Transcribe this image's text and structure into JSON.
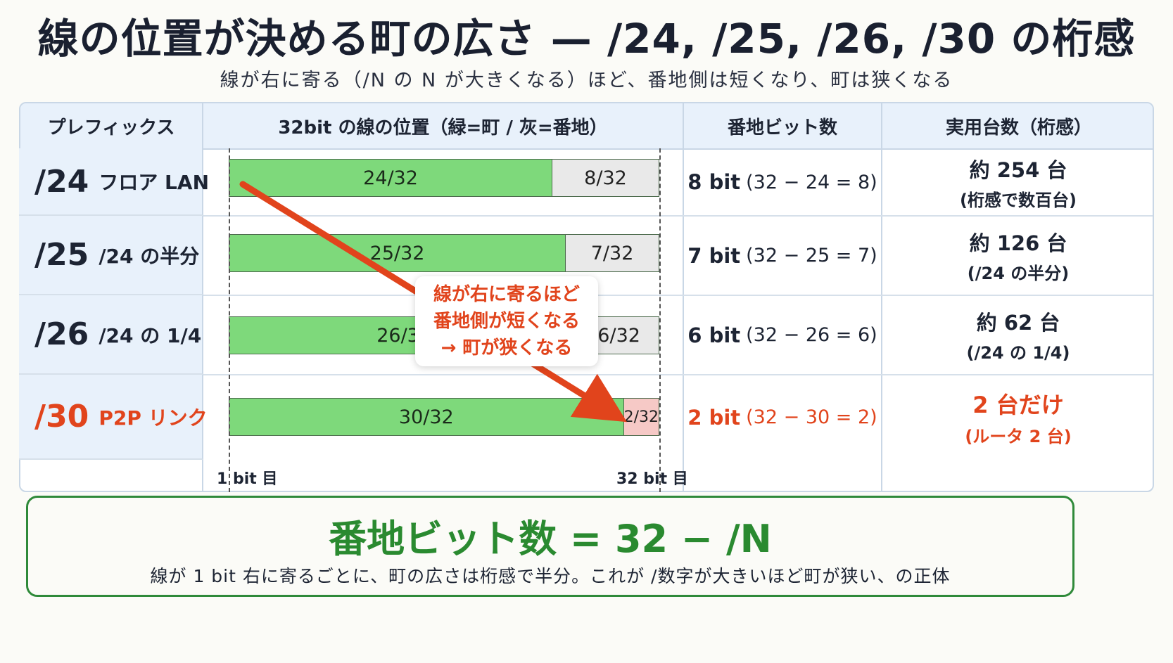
{
  "title": "線の位置が決める町の広さ — /24, /25, /26, /30 の桁感",
  "subtitle": "線が右に寄る（/N の N が大きくなる）ほど、番地側は短くなり、町は狭くなる",
  "table": {
    "headers": [
      "プレフィックス",
      "32bit の線の位置（緑=町 / 灰=番地）",
      "番地ビット数",
      "実用台数（桁感）"
    ],
    "rows": [
      {
        "prefix": "/24",
        "desc": "フロア LAN",
        "net_label": "24/32",
        "host_label": "8/32",
        "net_bits": 24,
        "bits": "8 bit",
        "calc": "(32 − 24 = 8)",
        "devices": "約 254 台",
        "devices_note": "(桁感で数百台)",
        "highlight": false
      },
      {
        "prefix": "/25",
        "desc": "/24 の半分",
        "net_label": "25/32",
        "host_label": "7/32",
        "net_bits": 25,
        "bits": "7 bit",
        "calc": "(32 − 25 = 7)",
        "devices": "約 126 台",
        "devices_note": "(/24 の半分)",
        "highlight": false
      },
      {
        "prefix": "/26",
        "desc": "/24 の 1/4",
        "net_label": "26/32",
        "host_label": "6/32",
        "net_bits": 26,
        "bits": "6 bit",
        "calc": "(32 − 26 = 6)",
        "devices": "約 62 台",
        "devices_note": "(/24 の 1/4)",
        "highlight": false
      },
      {
        "prefix": "/30",
        "desc": "P2P リンク",
        "net_label": "30/32",
        "host_label": "2/32",
        "net_bits": 30,
        "bits": "2 bit",
        "calc": "(32 − 30 = 2)",
        "devices": "2 台だけ",
        "devices_note": "(ルータ 2 台)",
        "highlight": true
      }
    ],
    "axis_start": "1 bit 目",
    "axis_end": "32 bit 目"
  },
  "callout": {
    "line1": "線が右に寄るほど",
    "line2": "番地側が短くなる",
    "line3": "→ 町が狭くなる"
  },
  "formula": {
    "text": "番地ビット数 = 32 − /N",
    "note": "線が 1 bit 右に寄るごとに、町の広さは桁感で半分。これが /数字が大きいほど町が狭い、の正体"
  },
  "colors": {
    "network": "#7ed97b",
    "host": "#e9e9e9",
    "host_highlight": "#f6c9c6",
    "accent": "#e1441c",
    "formula": "#2a8a30"
  }
}
